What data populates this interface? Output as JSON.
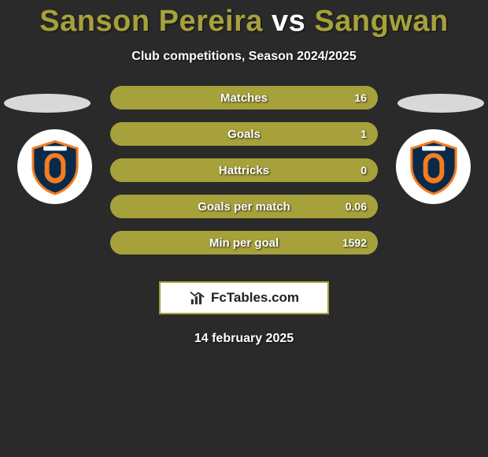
{
  "title": {
    "player1": "Sanson Pereira",
    "vs": "vs",
    "player2": "Sangwan",
    "player1_color": "#a6a13a",
    "vs_color": "#ffffff",
    "player2_color": "#a6a13a",
    "fontsize": 38
  },
  "subtitle": "Club competitions, Season 2024/2025",
  "background_color": "#2a2a2a",
  "club_badge": {
    "bg": "#ffffff",
    "shield_fill": "#0b2a4a",
    "shield_stroke": "#f47c20",
    "inner_fill": "#f47c20",
    "accent": "#ffffff"
  },
  "side_oval_color": "#d8d8d8",
  "bars": {
    "height": 30,
    "radius": 15,
    "gap": 16,
    "track_color": "#a6a13a",
    "fill_color": "#a6a13a",
    "label_color": "#ffffff",
    "label_fontsize": 15,
    "value_color": "#ffffff",
    "value_fontsize": 14,
    "items": [
      {
        "label": "Matches",
        "left_value": "",
        "right_value": "16",
        "left_frac": 0.0,
        "right_frac": 1.0
      },
      {
        "label": "Goals",
        "left_value": "",
        "right_value": "1",
        "left_frac": 0.0,
        "right_frac": 1.0
      },
      {
        "label": "Hattricks",
        "left_value": "",
        "right_value": "0",
        "left_frac": 0.0,
        "right_frac": 1.0
      },
      {
        "label": "Goals per match",
        "left_value": "",
        "right_value": "0.06",
        "left_frac": 0.0,
        "right_frac": 1.0
      },
      {
        "label": "Min per goal",
        "left_value": "",
        "right_value": "1592",
        "left_frac": 0.0,
        "right_frac": 1.0
      }
    ]
  },
  "brand": {
    "text": "FcTables.com",
    "border_color": "#a6a13a",
    "bg": "#ffffff",
    "text_color": "#222222",
    "icon_color": "#333333"
  },
  "date": "14 february 2025"
}
